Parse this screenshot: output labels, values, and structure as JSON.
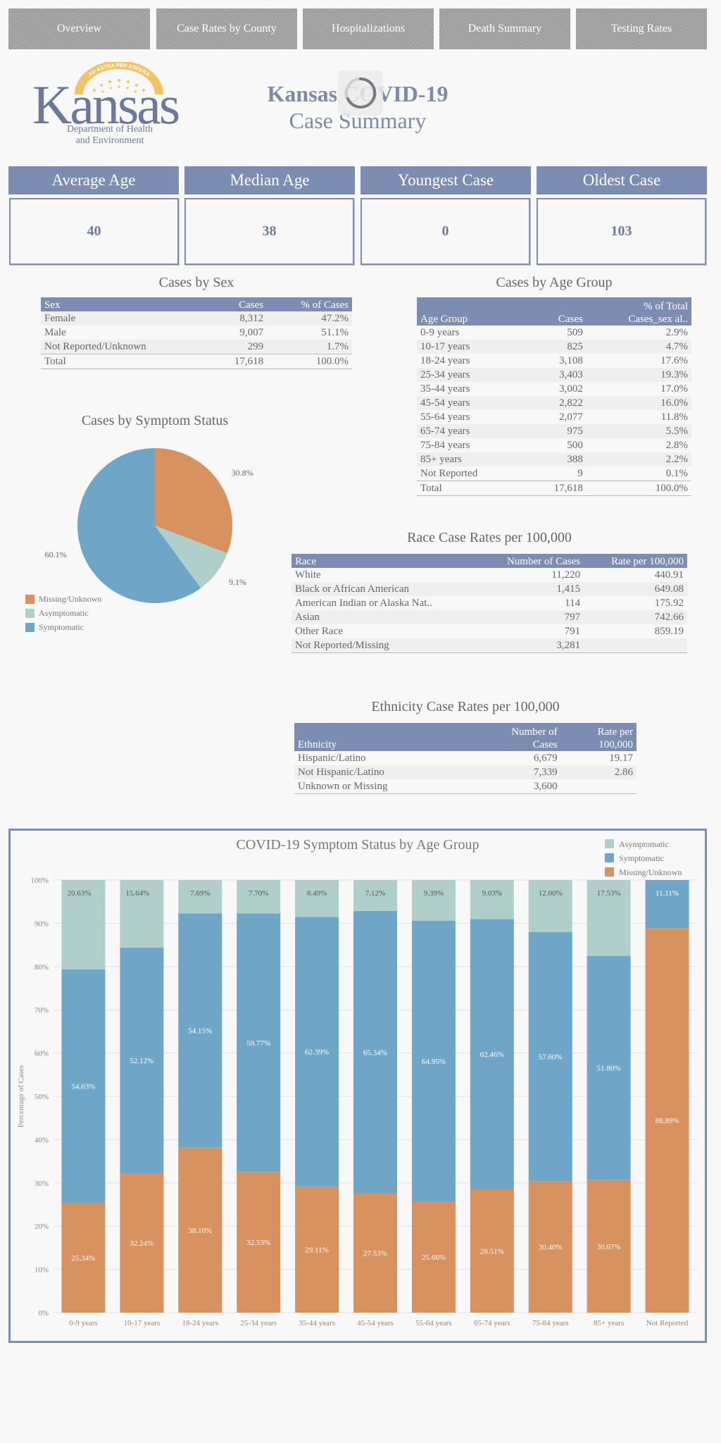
{
  "nav": [
    "Overview",
    "Case Rates by County",
    "Hospitalizations",
    "Death Summary",
    "Testing Rates"
  ],
  "logo": {
    "word": "Kansas",
    "arc_text": "AD ASTRA PER ASPERA",
    "dept_line1": "Department of Health",
    "dept_line2": "and Environment"
  },
  "header": {
    "title": "Kansas COVID-19",
    "subtitle": "Case Summary"
  },
  "kpis": [
    {
      "label": "Average Age",
      "value": "40"
    },
    {
      "label": "Median Age",
      "value": "38"
    },
    {
      "label": "Youngest Case",
      "value": "0"
    },
    {
      "label": "Oldest Case",
      "value": "103"
    }
  ],
  "sex": {
    "title": "Cases by Sex",
    "headers": [
      "Sex",
      "Cases",
      "% of Cases"
    ],
    "rows": [
      [
        "Female",
        "8,312",
        "47.2%"
      ],
      [
        "Male",
        "9,007",
        "51.1%"
      ],
      [
        "Not Reported/Unknown",
        "299",
        "1.7%"
      ]
    ],
    "total": [
      "Total",
      "17,618",
      "100.0%"
    ]
  },
  "age": {
    "title": "Cases by Age Group",
    "headers": [
      "Age Group",
      "Cases",
      "% of Total",
      "Cases_sex al.."
    ],
    "rows": [
      [
        "0-9 years",
        "509",
        "2.9%"
      ],
      [
        "10-17 years",
        "825",
        "4.7%"
      ],
      [
        "18-24 years",
        "3,108",
        "17.6%"
      ],
      [
        "25-34 years",
        "3,403",
        "19.3%"
      ],
      [
        "35-44 years",
        "3,002",
        "17.0%"
      ],
      [
        "45-54 years",
        "2,822",
        "16.0%"
      ],
      [
        "55-64 years",
        "2,077",
        "11.8%"
      ],
      [
        "65-74 years",
        "975",
        "5.5%"
      ],
      [
        "75-84 years",
        "500",
        "2.8%"
      ],
      [
        "85+ years",
        "388",
        "2.2%"
      ],
      [
        "Not Reported",
        "9",
        "0.1%"
      ]
    ],
    "total": [
      "Total",
      "17,618",
      "100.0%"
    ]
  },
  "race": {
    "title": "Race Case Rates per 100,000",
    "headers": [
      "Race",
      "Number of Cases",
      "Rate per 100,000"
    ],
    "rows": [
      [
        "White",
        "11,220",
        "440.91"
      ],
      [
        "Black or African American",
        "1,415",
        "649.08"
      ],
      [
        "American Indian or Alaska Nat..",
        "114",
        "175.92"
      ],
      [
        "Asian",
        "797",
        "742.66"
      ],
      [
        "Other Race",
        "791",
        "859.19"
      ],
      [
        "Not Reported/Missing",
        "3,281",
        ""
      ]
    ]
  },
  "ethnicity": {
    "title": "Ethnicity Case Rates per 100,000",
    "headers": [
      "Ethnicity",
      "Number of",
      "Cases",
      "Rate per",
      "100,000"
    ],
    "rows": [
      [
        "Hispanic/Latino",
        "6,679",
        "19.17"
      ],
      [
        "Not Hispanic/Latino",
        "7,339",
        "2.86"
      ],
      [
        "Unknown or Missing",
        "3,600",
        ""
      ]
    ]
  },
  "pie": {
    "title": "Cases by Symptom Status",
    "slices": [
      {
        "name": "Missing/Unknown",
        "value": 30.8,
        "label": "30.8%",
        "color": "#d8925f"
      },
      {
        "name": "Asymptomatic",
        "value": 9.1,
        "label": "9.1%",
        "color": "#b0cfcb"
      },
      {
        "name": "Symptomatic",
        "value": 60.1,
        "label": "60.1%",
        "color": "#6fa6c8"
      }
    ],
    "legend": [
      "Missing/Unknown",
      "Asymptomatic",
      "Symptomatic"
    ]
  },
  "chart_data": {
    "type": "bar",
    "stacked": true,
    "title": "COVID-19 Symptom Status by Age Group",
    "xlabel": "",
    "ylabel": "Percentage of Cases",
    "ylim": [
      0,
      100
    ],
    "yticks": [
      "0%",
      "10%",
      "20%",
      "30%",
      "40%",
      "50%",
      "60%",
      "70%",
      "80%",
      "90%",
      "100%"
    ],
    "categories": [
      "0-9 years",
      "10-17 years",
      "18-24 years",
      "25-34 years",
      "35-44 years",
      "45-54 years",
      "55-64 years",
      "65-74 years",
      "75-84 years",
      "85+ years",
      "Not Reported"
    ],
    "series": [
      {
        "name": "Missing/Unknown",
        "color": "#d8925f",
        "values": [
          25.34,
          32.24,
          38.16,
          32.53,
          29.11,
          27.53,
          25.66,
          28.51,
          30.4,
          30.67,
          88.89
        ],
        "labels": [
          "25.34%",
          "32.24%",
          "38.16%",
          "32.53%",
          "29.11%",
          "27.53%",
          "25.66%",
          "28.51%",
          "30.40%",
          "30.67%",
          "88.89%"
        ]
      },
      {
        "name": "Symptomatic",
        "color": "#6fa6c8",
        "values": [
          54.03,
          52.12,
          54.15,
          59.77,
          62.39,
          65.34,
          64.95,
          62.46,
          57.6,
          51.8,
          11.11
        ],
        "labels": [
          "54.03%",
          "52.12%",
          "54.15%",
          "59.77%",
          "62.39%",
          "65.34%",
          "64.95%",
          "62.46%",
          "57.60%",
          "51.80%",
          "11.11%"
        ]
      },
      {
        "name": "Asymptomatic",
        "color": "#b0cfcb",
        "values": [
          20.63,
          15.64,
          7.69,
          7.7,
          8.49,
          7.12,
          9.39,
          9.03,
          12.0,
          17.53,
          0
        ],
        "labels": [
          "20.63%",
          "15.64%",
          "7.69%",
          "7.70%",
          "8.49%",
          "7.12%",
          "9.39%",
          "9.03%",
          "12.00%",
          "17.53%",
          ""
        ]
      }
    ],
    "legend": [
      "Asymptomatic",
      "Symptomatic",
      "Missing/Unknown"
    ],
    "legend_position": "top-right",
    "grid": true
  }
}
